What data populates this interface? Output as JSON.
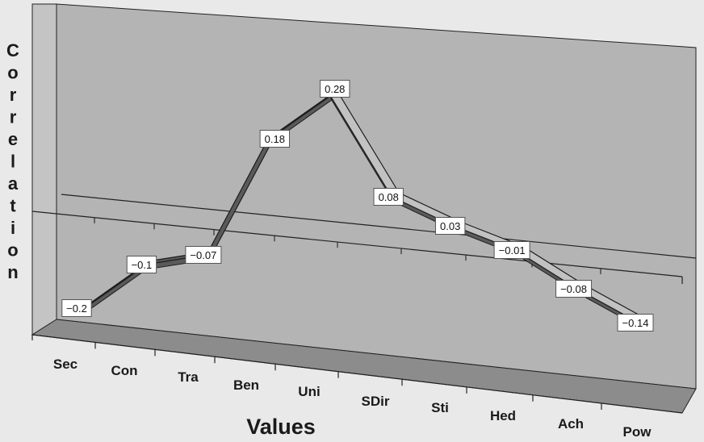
{
  "chart_data": {
    "type": "line",
    "title": "",
    "xlabel": "Values",
    "ylabel": "Correlation",
    "categories": [
      "Sec",
      "Con",
      "Tra",
      "Ben",
      "Uni",
      "SDir",
      "Sti",
      "Hed",
      "Ach",
      "Pow"
    ],
    "values": [
      -0.2,
      -0.1,
      -0.07,
      0.18,
      0.28,
      0.08,
      0.03,
      -0.01,
      -0.08,
      -0.14
    ],
    "data_labels": [
      "−0.2",
      "−0.1",
      "−0.07",
      "0.18",
      "0.28",
      "0.08",
      "0.03",
      "−0.01",
      "−0.08",
      "−0.14"
    ],
    "ylim": [
      -0.2,
      0.3
    ],
    "grid": false,
    "legend": "none",
    "style": "3d",
    "colors": {
      "background": "#e9e9e9",
      "back_wall": "#b4b4b4",
      "side_wall": "#c4c4c4",
      "floor": "#8c8c8c",
      "ribbon_top": "#c2c2c2",
      "ribbon_side": "#5a5a5a",
      "ribbon_edge": "#1e1e1e",
      "axis": "#222222"
    }
  }
}
